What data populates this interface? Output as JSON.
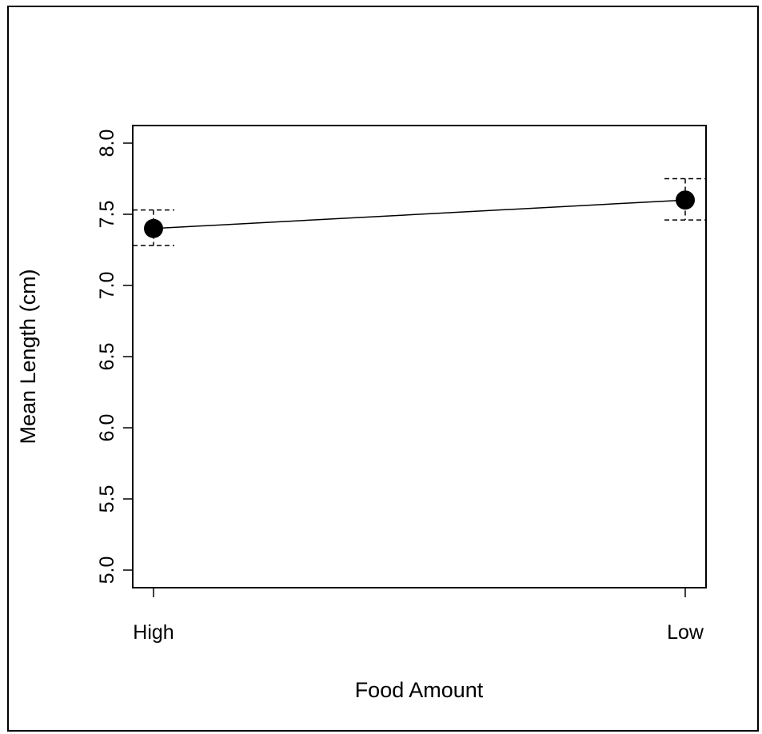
{
  "chart_data": {
    "type": "line",
    "title": "",
    "xlabel": "Food Amount",
    "ylabel": "Mean Length (cm)",
    "categories": [
      "High",
      "Low"
    ],
    "values": [
      7.4,
      7.6
    ],
    "error_upper": [
      7.53,
      7.75
    ],
    "error_lower": [
      7.28,
      7.46
    ],
    "ylim": [
      5.0,
      8.0
    ],
    "yticks": [
      "5.0",
      "5.5",
      "6.0",
      "6.5",
      "7.0",
      "7.5",
      "8.0"
    ],
    "ytick_values": [
      5.0,
      5.5,
      6.0,
      6.5,
      7.0,
      7.5,
      8.0
    ],
    "grid": false,
    "colors": {
      "line": "#000000",
      "point": "#000000",
      "error": "#000000"
    }
  }
}
